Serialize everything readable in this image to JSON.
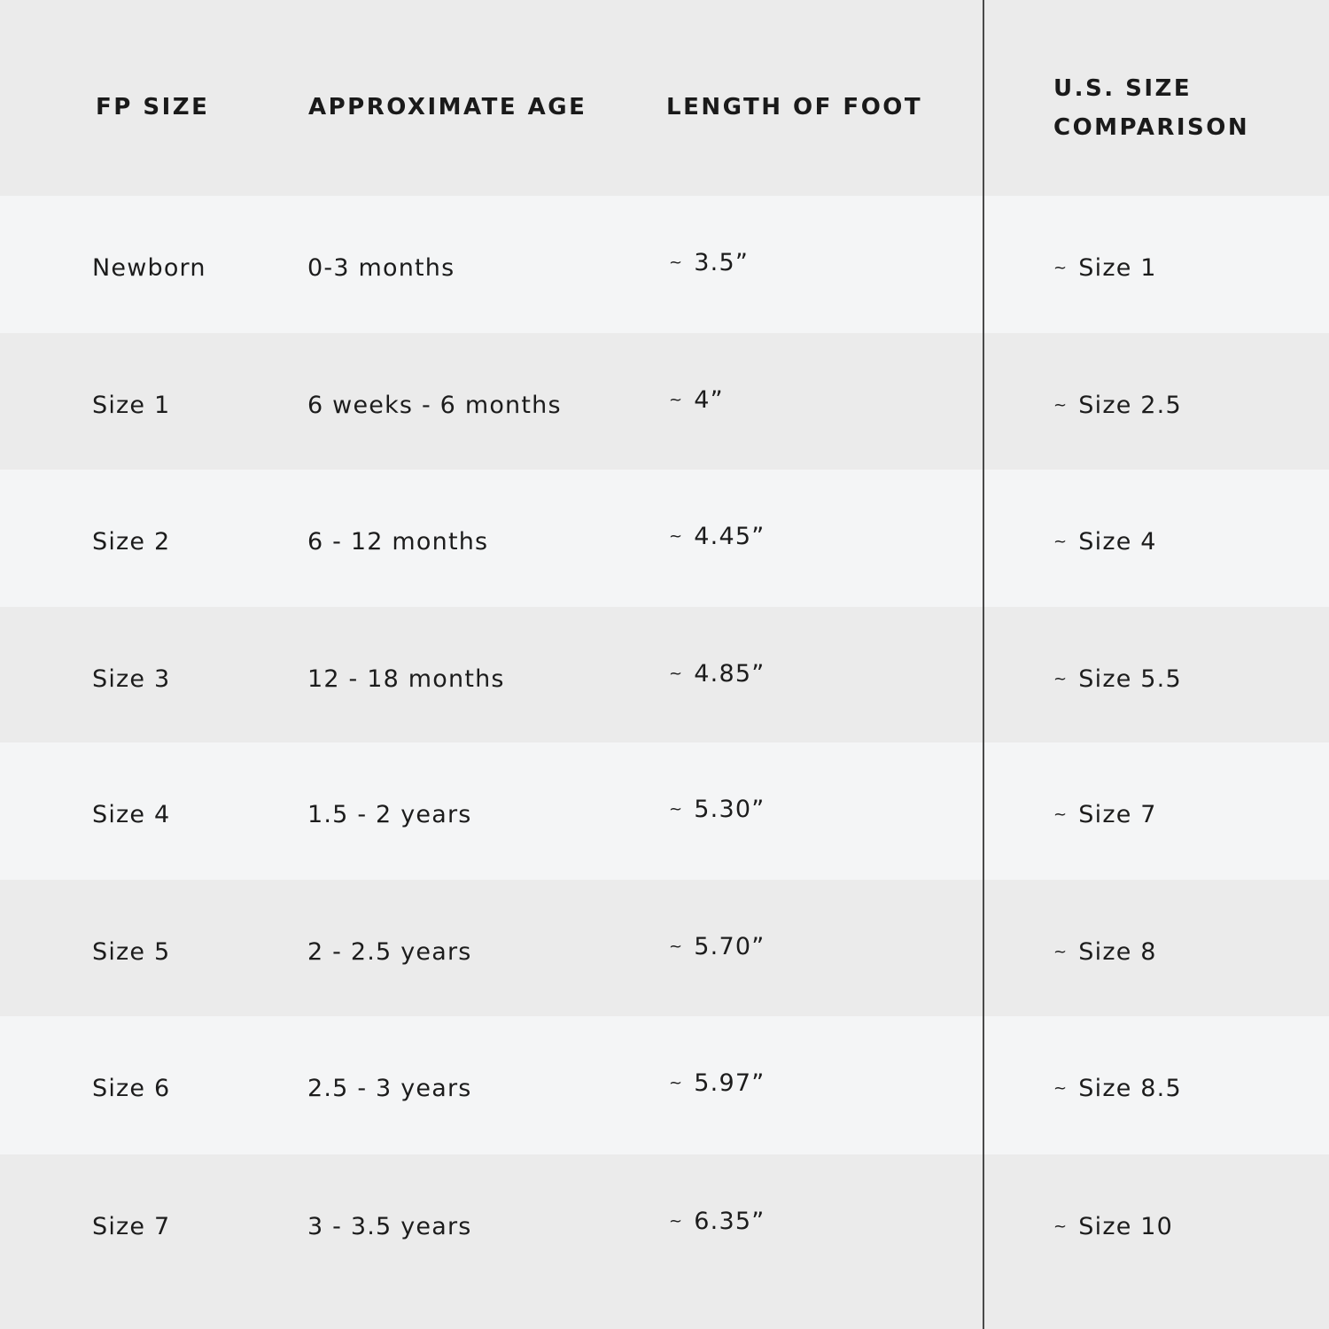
{
  "headers": {
    "fp_size": "FP SIZE",
    "age": "APPROXIMATE AGE",
    "length": "LENGTH OF FOOT",
    "us_size_line1": "U.S. SIZE",
    "us_size_line2": "COMPARISON"
  },
  "tilde": "~",
  "rows": [
    {
      "fp_size": "Newborn",
      "age": "0-3 months",
      "length": "3.5”",
      "us_size": "Size 1"
    },
    {
      "fp_size": "Size 1",
      "age": "6 weeks - 6 months",
      "length": "4”",
      "us_size": "Size 2.5"
    },
    {
      "fp_size": "Size 2",
      "age": "6 - 12 months",
      "length": "4.45”",
      "us_size": "Size 4"
    },
    {
      "fp_size": "Size 3",
      "age": "12 - 18 months",
      "length": "4.85”",
      "us_size": "Size 5.5"
    },
    {
      "fp_size": "Size 4",
      "age": "1.5 - 2 years",
      "length": "5.30”",
      "us_size": "Size 7"
    },
    {
      "fp_size": "Size 5",
      "age": "2 - 2.5 years",
      "length": "5.70”",
      "us_size": "Size 8"
    },
    {
      "fp_size": "Size 6",
      "age": "2.5 - 3 years",
      "length": "5.97”",
      "us_size": "Size 8.5"
    },
    {
      "fp_size": "Size 7",
      "age": "3 - 3.5 years",
      "length": "6.35”",
      "us_size": "Size 10"
    }
  ]
}
